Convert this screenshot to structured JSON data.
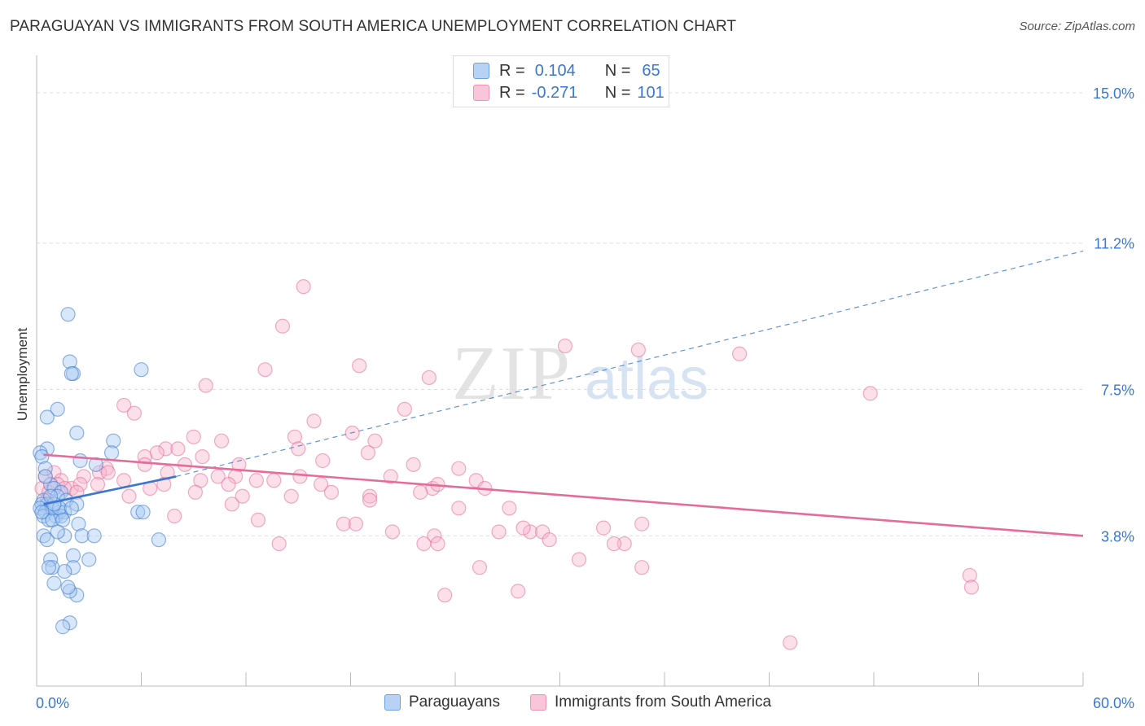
{
  "title": "PARAGUAYAN VS IMMIGRANTS FROM SOUTH AMERICA UNEMPLOYMENT CORRELATION CHART",
  "source": "Source: ZipAtlas.com",
  "colors": {
    "blue": "#3b77d0",
    "blue_fill": "#a9c9f2",
    "pink": "#e56b98",
    "pink_fill": "#f6b9cf",
    "grid": "#dddddd",
    "tick_text": "#3b77d0"
  },
  "legend_top": {
    "rows": [
      {
        "r_label": "R =",
        "r_value": "0.104",
        "n_label": "N =",
        "n_value": "65"
      },
      {
        "r_label": "R =",
        "r_value": "-0.271",
        "n_label": "N =",
        "n_value": "101"
      }
    ]
  },
  "chart_data": {
    "type": "scatter",
    "ylabel": "Unemployment",
    "xlim": [
      0,
      60
    ],
    "ylim": [
      0,
      15.7
    ],
    "x_tick_labels": [
      "0.0%",
      "60.0%"
    ],
    "y_ticks": [
      {
        "value": 3.8,
        "label": "3.8%"
      },
      {
        "value": 7.5,
        "label": "7.5%"
      },
      {
        "value": 11.2,
        "label": "11.2%"
      },
      {
        "value": 15.0,
        "label": "15.0%"
      }
    ],
    "grid": "horizontal-dashed",
    "legend": "bottom-center",
    "watermark": {
      "zip": "ZIP",
      "atlas": "atlas"
    },
    "series": [
      {
        "name": "Paraguayans",
        "color": "#3b77d0",
        "fill": "#a9c9f2",
        "trend": {
          "solid": [
            [
              0.4,
              4.6
            ],
            [
              8.0,
              5.3
            ]
          ],
          "dashed": [
            [
              8.0,
              5.3
            ],
            [
              60,
              11.0
            ]
          ]
        },
        "points": [
          [
            1.8,
            9.4
          ],
          [
            1.9,
            8.2
          ],
          [
            2.1,
            7.9
          ],
          [
            2.0,
            7.9
          ],
          [
            6.0,
            8.0
          ],
          [
            1.2,
            7.0
          ],
          [
            0.6,
            6.8
          ],
          [
            2.3,
            6.4
          ],
          [
            4.4,
            6.2
          ],
          [
            0.6,
            6.0
          ],
          [
            0.2,
            5.9
          ],
          [
            4.3,
            5.9
          ],
          [
            0.3,
            5.8
          ],
          [
            2.5,
            5.7
          ],
          [
            3.4,
            5.6
          ],
          [
            0.5,
            5.5
          ],
          [
            0.8,
            5.1
          ],
          [
            1.0,
            5.0
          ],
          [
            1.4,
            4.9
          ],
          [
            1.2,
            4.8
          ],
          [
            0.4,
            4.7
          ],
          [
            0.6,
            4.6
          ],
          [
            1.7,
            4.7
          ],
          [
            0.3,
            4.6
          ],
          [
            2.3,
            4.6
          ],
          [
            0.2,
            4.5
          ],
          [
            0.5,
            4.4
          ],
          [
            1.3,
            4.4
          ],
          [
            0.4,
            4.3
          ],
          [
            1.1,
            4.3
          ],
          [
            1.6,
            4.4
          ],
          [
            0.7,
            4.2
          ],
          [
            1.4,
            4.3
          ],
          [
            5.8,
            4.4
          ],
          [
            6.1,
            4.4
          ],
          [
            0.9,
            4.2
          ],
          [
            2.4,
            4.1
          ],
          [
            0.4,
            3.8
          ],
          [
            1.6,
            3.8
          ],
          [
            2.6,
            3.8
          ],
          [
            3.3,
            3.8
          ],
          [
            0.6,
            3.7
          ],
          [
            7.0,
            3.7
          ],
          [
            2.1,
            3.3
          ],
          [
            3.0,
            3.2
          ],
          [
            0.8,
            3.2
          ],
          [
            0.9,
            3.0
          ],
          [
            2.1,
            3.0
          ],
          [
            0.7,
            3.0
          ],
          [
            1.6,
            2.9
          ],
          [
            1.0,
            2.6
          ],
          [
            2.3,
            2.3
          ],
          [
            1.9,
            2.4
          ],
          [
            1.9,
            1.6
          ],
          [
            1.5,
            1.5
          ],
          [
            1.8,
            2.5
          ],
          [
            0.5,
            5.3
          ],
          [
            0.9,
            4.5
          ],
          [
            1.3,
            4.5
          ],
          [
            2.0,
            4.5
          ],
          [
            0.3,
            4.4
          ],
          [
            1.0,
            4.6
          ],
          [
            1.5,
            4.2
          ],
          [
            0.8,
            4.8
          ],
          [
            1.2,
            3.9
          ]
        ]
      },
      {
        "name": "Immigrants from South America",
        "color": "#e56b98",
        "fill": "#f6b9cf",
        "trend": {
          "solid": [
            [
              0.4,
              5.85
            ],
            [
              60,
              3.8
            ]
          ]
        },
        "points": [
          [
            15.3,
            10.1
          ],
          [
            14.1,
            9.1
          ],
          [
            30.3,
            8.6
          ],
          [
            34.5,
            8.5
          ],
          [
            40.3,
            8.4
          ],
          [
            13.1,
            8.0
          ],
          [
            18.5,
            8.1
          ],
          [
            22.5,
            7.8
          ],
          [
            9.7,
            7.6
          ],
          [
            47.8,
            7.4
          ],
          [
            5.0,
            7.1
          ],
          [
            21.1,
            7.0
          ],
          [
            5.6,
            6.9
          ],
          [
            15.9,
            6.7
          ],
          [
            18.1,
            6.4
          ],
          [
            9.0,
            6.3
          ],
          [
            10.6,
            6.2
          ],
          [
            14.8,
            6.3
          ],
          [
            19.4,
            6.2
          ],
          [
            15.0,
            6.0
          ],
          [
            7.4,
            6.0
          ],
          [
            6.9,
            5.9
          ],
          [
            8.1,
            6.0
          ],
          [
            6.2,
            5.8
          ],
          [
            9.5,
            5.8
          ],
          [
            19.0,
            5.9
          ],
          [
            4.0,
            5.5
          ],
          [
            3.6,
            5.4
          ],
          [
            6.2,
            5.6
          ],
          [
            11.6,
            5.6
          ],
          [
            16.4,
            5.7
          ],
          [
            7.5,
            5.4
          ],
          [
            8.5,
            5.6
          ],
          [
            10.4,
            5.3
          ],
          [
            11.4,
            5.3
          ],
          [
            2.7,
            5.3
          ],
          [
            4.1,
            5.4
          ],
          [
            5.0,
            5.2
          ],
          [
            6.5,
            5.0
          ],
          [
            7.3,
            5.1
          ],
          [
            9.4,
            5.2
          ],
          [
            11.0,
            5.1
          ],
          [
            12.6,
            5.2
          ],
          [
            13.6,
            5.2
          ],
          [
            15.1,
            5.3
          ],
          [
            16.3,
            5.1
          ],
          [
            20.3,
            5.3
          ],
          [
            21.6,
            5.6
          ],
          [
            22.7,
            5.0
          ],
          [
            23.0,
            5.1
          ],
          [
            24.2,
            5.5
          ],
          [
            25.2,
            5.2
          ],
          [
            0.5,
            5.3
          ],
          [
            1.0,
            5.4
          ],
          [
            1.4,
            5.2
          ],
          [
            2.0,
            5.0
          ],
          [
            2.5,
            5.1
          ],
          [
            3.5,
            5.1
          ],
          [
            0.3,
            5.0
          ],
          [
            1.2,
            5.1
          ],
          [
            0.7,
            4.9
          ],
          [
            1.6,
            5.0
          ],
          [
            2.3,
            4.9
          ],
          [
            5.3,
            4.8
          ],
          [
            9.1,
            4.9
          ],
          [
            11.8,
            4.8
          ],
          [
            14.6,
            4.8
          ],
          [
            16.9,
            4.9
          ],
          [
            19.1,
            4.8
          ],
          [
            22.0,
            4.9
          ],
          [
            25.7,
            5.0
          ],
          [
            0.6,
            4.7
          ],
          [
            11.2,
            4.6
          ],
          [
            19.1,
            4.7
          ],
          [
            24.2,
            4.5
          ],
          [
            27.1,
            4.5
          ],
          [
            12.7,
            4.2
          ],
          [
            17.6,
            4.1
          ],
          [
            18.3,
            4.1
          ],
          [
            7.9,
            4.3
          ],
          [
            20.4,
            3.9
          ],
          [
            22.8,
            3.8
          ],
          [
            26.5,
            3.9
          ],
          [
            28.3,
            3.9
          ],
          [
            29.0,
            3.9
          ],
          [
            27.9,
            4.0
          ],
          [
            32.5,
            4.0
          ],
          [
            34.7,
            4.1
          ],
          [
            13.9,
            3.6
          ],
          [
            22.2,
            3.6
          ],
          [
            23.0,
            3.6
          ],
          [
            33.7,
            3.6
          ],
          [
            29.4,
            3.7
          ],
          [
            31.1,
            3.2
          ],
          [
            25.4,
            3.0
          ],
          [
            33.1,
            3.6
          ],
          [
            34.7,
            3.0
          ],
          [
            27.6,
            2.4
          ],
          [
            23.4,
            2.3
          ],
          [
            53.5,
            2.8
          ],
          [
            53.6,
            2.5
          ],
          [
            43.2,
            1.1
          ]
        ]
      }
    ]
  },
  "legend_bottom": {
    "items": [
      {
        "label": "Paraguayans"
      },
      {
        "label": "Immigrants from South America"
      }
    ]
  }
}
